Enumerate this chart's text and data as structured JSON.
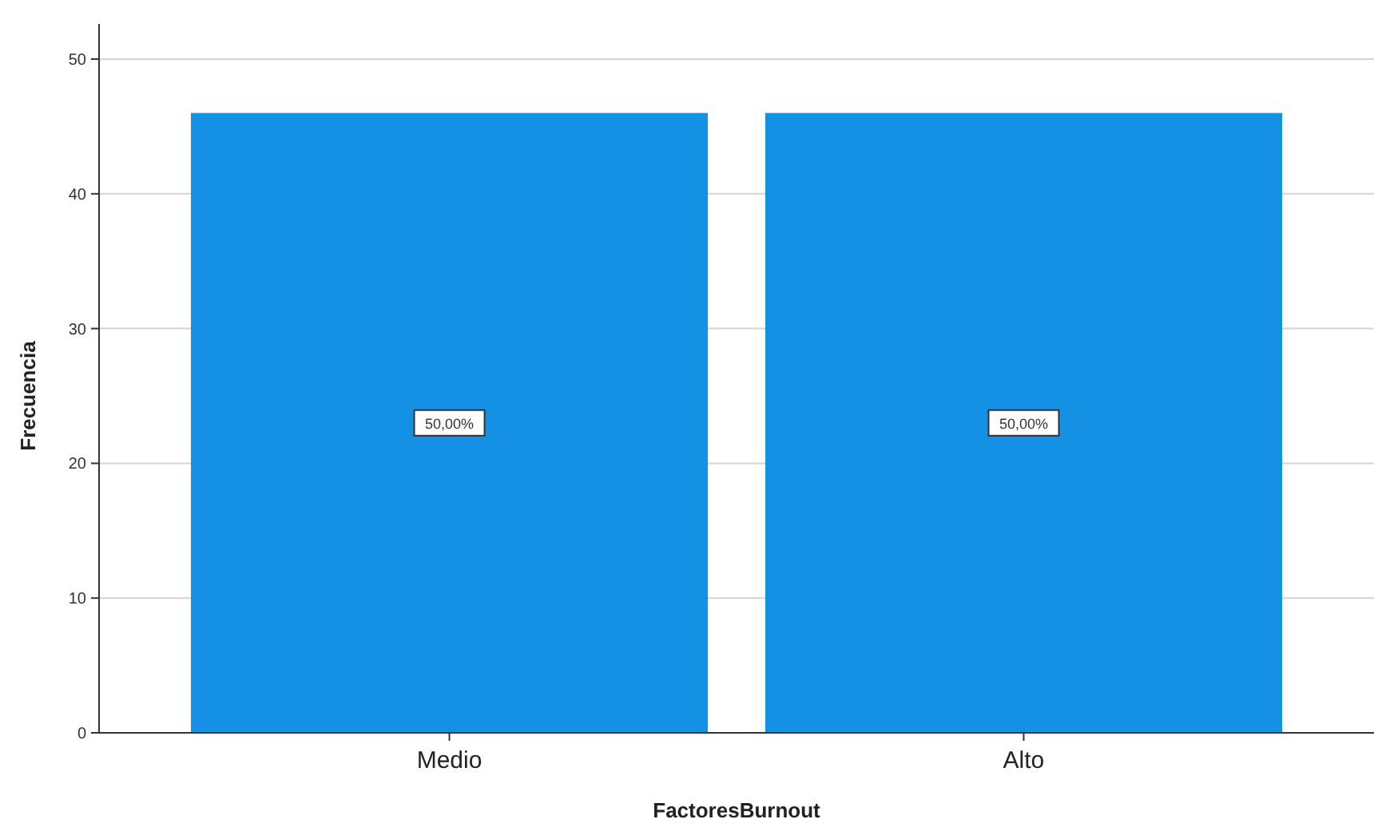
{
  "chart_data": {
    "type": "bar",
    "xlabel": "FactoresBurnout",
    "ylabel": "Frecuencia",
    "categories": [
      "Medio",
      "Alto"
    ],
    "values": [
      46,
      46
    ],
    "color": "#1490e4",
    "annotations": [
      {
        "text": "50,00%",
        "x": "Medio",
        "y": 23
      },
      {
        "text": "50,00%",
        "x": "Alto",
        "y": 23
      }
    ],
    "ylim": [
      0,
      50
    ],
    "yticks": [
      0,
      10,
      20,
      30,
      40,
      50
    ],
    "grid": "y"
  }
}
